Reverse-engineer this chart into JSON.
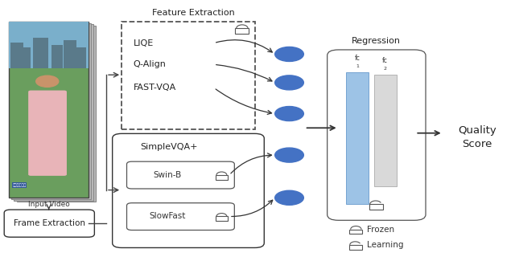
{
  "bg_color": "#ffffff",
  "input_video_label": "Input Video",
  "frame_extraction_label": "Frame Extraction",
  "feature_extraction_label": "Feature Extraction",
  "liqe_label": "LIQE",
  "qalign_label": "Q-Align",
  "fastvqa_label": "FAST-VQA",
  "simplevqa_label": "SimpleVQA+",
  "swinb_label": "Swin-B",
  "slowfast_label": "SlowFast",
  "regression_label": "Regression",
  "fc1_label": "fc\n1",
  "fc2_label": "fc\n2",
  "quality_score_label": "Quality\nScore",
  "frozen_label": "Frozen",
  "learning_label": "Learning",
  "circle_color": "#4472C4",
  "fc1_color": "#9DC3E6",
  "fc2_color": "#D9D9D9",
  "arrow_color": "#333333",
  "box_color": "#333333",
  "lock_color": "#555555"
}
